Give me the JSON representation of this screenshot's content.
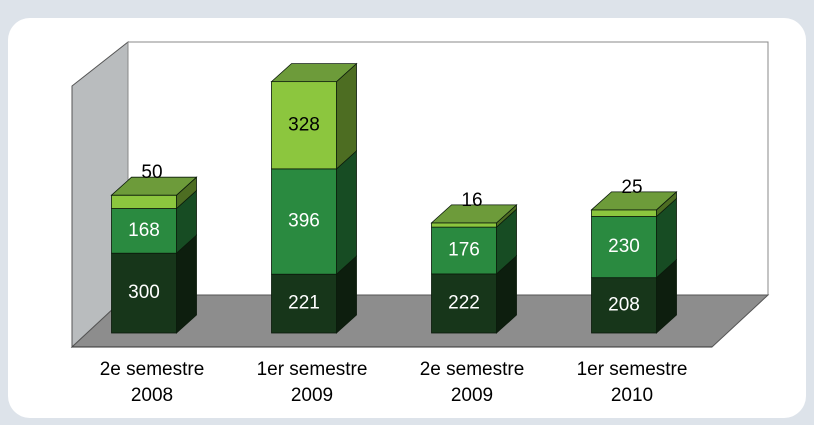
{
  "chart_data": {
    "type": "bar3d_stacked",
    "categories": [
      "2e semestre 2008",
      "1er semestre 2009",
      "2e semestre 2009",
      "1er semestre 2010"
    ],
    "series": [
      {
        "color": "#17361a",
        "values": [
          300,
          221,
          222,
          208
        ]
      },
      {
        "color": "#2a8a40",
        "values": [
          168,
          396,
          176,
          230
        ]
      },
      {
        "color": "#8cc63e",
        "values": [
          50,
          328,
          16,
          25
        ]
      }
    ]
  }
}
